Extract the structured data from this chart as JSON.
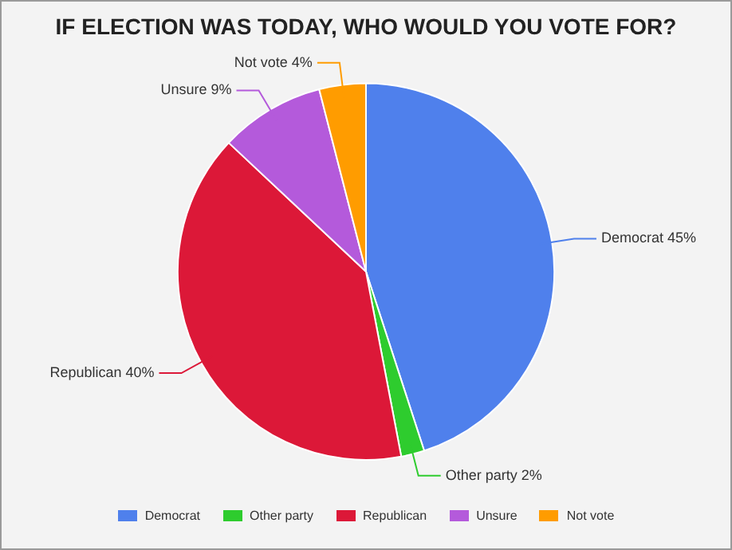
{
  "chart_data": {
    "type": "pie",
    "title": "IF ELECTION WAS TODAY, WHO WOULD YOU VOTE FOR?",
    "categories": [
      "Democrat",
      "Other party",
      "Republican",
      "Unsure",
      "Not vote"
    ],
    "values": [
      45,
      2,
      40,
      9,
      4
    ],
    "colors": [
      "#4f80ec",
      "#2ecc2e",
      "#dc1838",
      "#b45adb",
      "#ff9c00"
    ],
    "value_labels": [
      "45%",
      "2%",
      "40%",
      "9%",
      "4%"
    ],
    "legend": "bottom"
  }
}
